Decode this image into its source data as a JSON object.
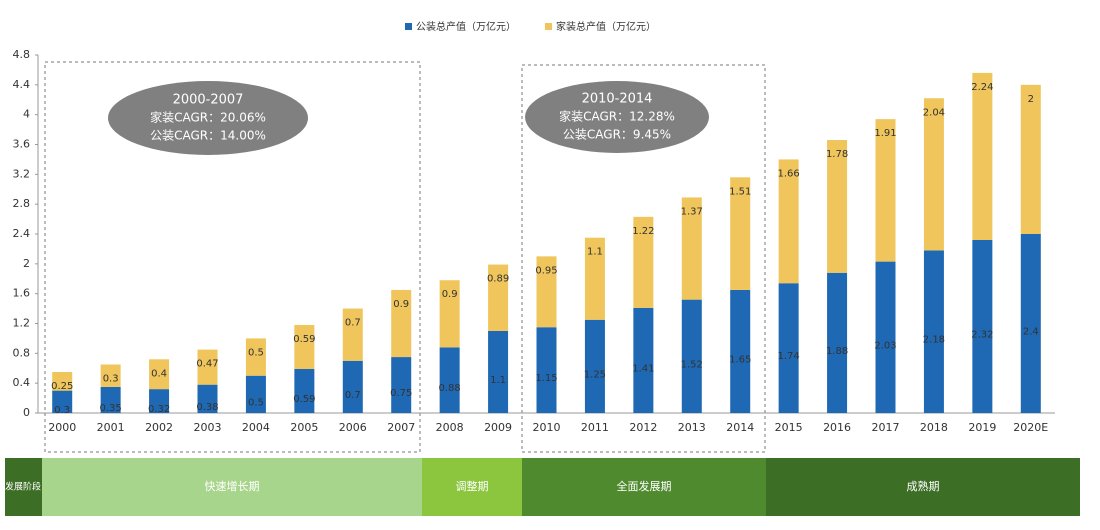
{
  "chart_data": {
    "type": "bar",
    "stacked": true,
    "categories": [
      "2000",
      "2001",
      "2002",
      "2003",
      "2004",
      "2005",
      "2006",
      "2007",
      "2008",
      "2009",
      "2010",
      "2011",
      "2012",
      "2013",
      "2014",
      "2015",
      "2016",
      "2017",
      "2018",
      "2019",
      "2020E"
    ],
    "series": [
      {
        "name": "公装总产值（万亿元）",
        "color": "#1f68b3",
        "values": [
          0.3,
          0.35,
          0.32,
          0.38,
          0.5,
          0.59,
          0.7,
          0.75,
          0.88,
          1.1,
          1.15,
          1.25,
          1.41,
          1.52,
          1.65,
          1.74,
          1.88,
          2.03,
          2.18,
          2.32,
          2.4
        ]
      },
      {
        "name": "家装总产值（万亿元）",
        "color": "#efc55c",
        "values": [
          0.25,
          0.3,
          0.4,
          0.47,
          0.5,
          0.59,
          0.7,
          0.9,
          0.9,
          0.89,
          0.95,
          1.1,
          1.22,
          1.37,
          1.51,
          1.66,
          1.78,
          1.91,
          2.04,
          2.24,
          2
        ]
      }
    ],
    "ylim": [
      0,
      4.8
    ],
    "yticks": [
      0,
      0.4,
      0.8,
      1.2,
      1.6,
      2,
      2.4,
      2.8,
      3.2,
      3.6,
      4,
      4.4,
      4.8
    ],
    "grid": false,
    "annotations": [
      {
        "period": "2000-2007",
        "lines": [
          "家装CAGR：20.06%",
          "公装CAGR：14.00%"
        ]
      },
      {
        "period": "2010-2014",
        "lines": [
          "家装CAGR：12.28%",
          "公装CAGR：9.45%"
        ]
      }
    ],
    "stage_header": "发展阶段",
    "stages": [
      "快速增长期",
      "调整期",
      "全面发展期",
      "成熟期"
    ]
  }
}
